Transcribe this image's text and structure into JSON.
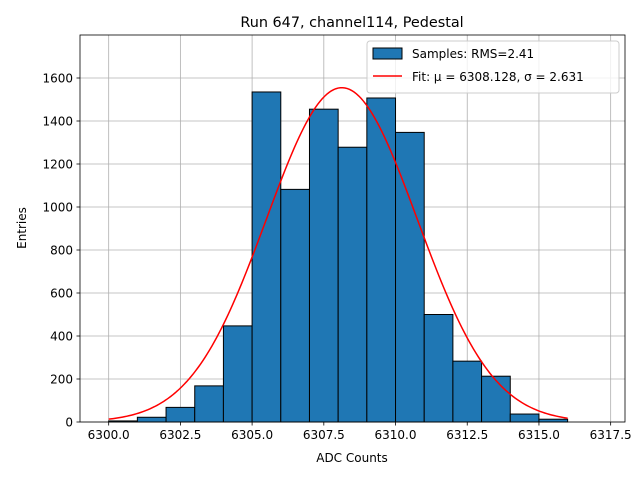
{
  "chart_data": {
    "type": "bar",
    "title": "Run 647, channel114, Pedestal",
    "xlabel": "ADC Counts",
    "ylabel": "Entries",
    "xlim": [
      6299,
      6318
    ],
    "ylim": [
      0,
      1800
    ],
    "xticks": [
      "6300.0",
      "6302.5",
      "6305.0",
      "6307.5",
      "6310.0",
      "6312.5",
      "6315.0",
      "6317.5"
    ],
    "yticks": [
      "0",
      "200",
      "400",
      "600",
      "800",
      "1000",
      "1200",
      "1400",
      "1600"
    ],
    "grid": true,
    "legend_position": "top-right",
    "bins": {
      "edges": [
        6300,
        6301,
        6302,
        6303,
        6304,
        6305,
        6306,
        6307,
        6308,
        6309,
        6310,
        6311,
        6312,
        6313,
        6314,
        6315,
        6316
      ],
      "counts": [
        5,
        22,
        68,
        168,
        447,
        1535,
        1082,
        1455,
        1278,
        1507,
        1347,
        500,
        283,
        213,
        37,
        13
      ]
    },
    "fit": {
      "mu": 6308.128,
      "sigma": 2.631,
      "amplitude": 1555,
      "x_range": [
        6300,
        6316
      ]
    },
    "series": [
      {
        "name": "Samples: RMS=2.41",
        "kind": "histogram",
        "color": "#1f77b4"
      },
      {
        "name": "Fit: μ = 6308.128, σ = 2.631",
        "kind": "line",
        "color": "#ff0000"
      }
    ]
  }
}
